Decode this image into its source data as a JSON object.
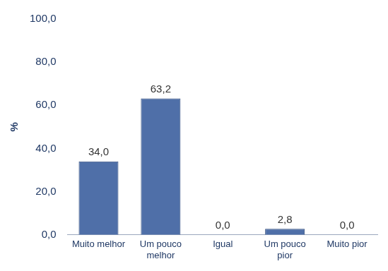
{
  "chart_data": {
    "type": "bar",
    "ylabel": "%",
    "categories": [
      "Muito melhor",
      "Um pouco melhor",
      "Igual",
      "Um pouco pior",
      "Muito pior"
    ],
    "values": [
      34.0,
      63.2,
      0.0,
      2.8,
      0.0
    ],
    "value_labels": [
      "34,0",
      "63,2",
      "0,0",
      "2,8",
      "0,0"
    ],
    "color": "#4f6fa8",
    "ylim": [
      0,
      100
    ],
    "yticks": [
      {
        "value": 0,
        "label": "0,0"
      },
      {
        "value": 20,
        "label": "20,0"
      },
      {
        "value": 40,
        "label": "40,0"
      },
      {
        "value": 60,
        "label": "60,0"
      },
      {
        "value": 80,
        "label": "80,0"
      },
      {
        "value": 100,
        "label": "100,0"
      }
    ],
    "grid": false,
    "data_labels": true
  }
}
